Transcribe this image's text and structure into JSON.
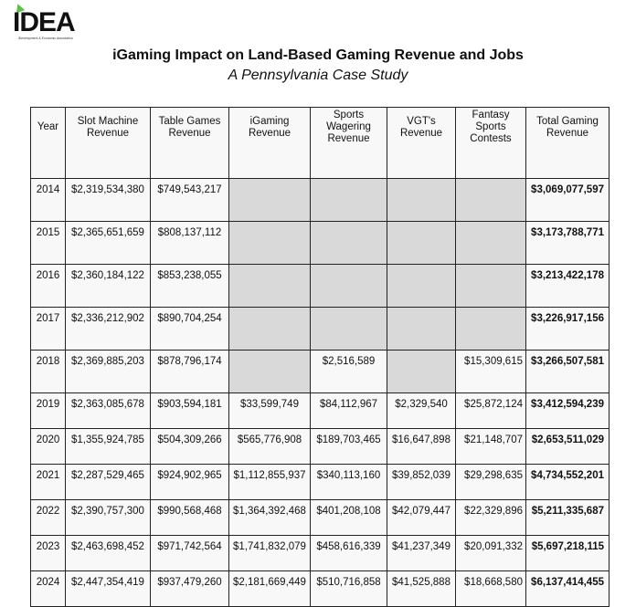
{
  "logo": {
    "text": "IDEA",
    "tagline": "iDevelopment & Economic Association",
    "accent_color": "#5dc24a"
  },
  "title": "iGaming Impact on Land-Based Gaming Revenue and Jobs",
  "subtitle": "A Pennsylvania Case Study",
  "table": {
    "headers": [
      [
        "Year"
      ],
      [
        "Slot Machine",
        "Revenue"
      ],
      [
        "Table Games",
        "Revenue"
      ],
      [
        "iGaming",
        "Revenue"
      ],
      [
        "Sports",
        "Wagering",
        "Revenue"
      ],
      [
        "VGT's",
        "Revenue"
      ],
      [
        "Fantasy",
        "Sports",
        "Contests"
      ],
      [
        "Total Gaming",
        "Revenue"
      ]
    ],
    "empty_cell_color": "#d9d9d9",
    "rows": [
      [
        "2014",
        "$2,319,534,380",
        "$749,543,217",
        "",
        "",
        "",
        "",
        "$3,069,077,597"
      ],
      [
        "2015",
        "$2,365,651,659",
        "$808,137,112",
        "",
        "",
        "",
        "",
        "$3,173,788,771"
      ],
      [
        "2016",
        "$2,360,184,122",
        "$853,238,055",
        "",
        "",
        "",
        "",
        "$3,213,422,178"
      ],
      [
        "2017",
        "$2,336,212,902",
        "$890,704,254",
        "",
        "",
        "",
        "",
        "$3,226,917,156"
      ],
      [
        "2018",
        "$2,369,885,203",
        "$878,796,174",
        "",
        "$2,516,589",
        "",
        "$15,309,615",
        "$3,266,507,581"
      ],
      [
        "2019",
        "$2,363,085,678",
        "$903,594,181",
        "$33,599,749",
        "$84,112,967",
        "$2,329,540",
        "$25,872,124",
        "$3,412,594,239"
      ],
      [
        "2020",
        "$1,355,924,785",
        "$504,309,266",
        "$565,776,908",
        "$189,703,465",
        "$16,647,898",
        "$21,148,707",
        "$2,653,511,029"
      ],
      [
        "2021",
        "$2,287,529,465",
        "$924,902,965",
        "$1,112,855,937",
        "$340,113,160",
        "$39,852,039",
        "$29,298,635",
        "$4,734,552,201"
      ],
      [
        "2022",
        "$2,390,757,300",
        "$990,568,468",
        "$1,364,392,468",
        "$401,208,108",
        "$42,079,447",
        "$22,329,896",
        "$5,211,335,687"
      ],
      [
        "2023",
        "$2,463,698,452",
        "$971,742,564",
        "$1,741,832,079",
        "$458,616,339",
        "$41,237,349",
        "$20,091,332",
        "$5,697,218,115"
      ],
      [
        "2024",
        "$2,447,354,419",
        "$937,479,260",
        "$2,181,669,449",
        "$510,716,858",
        "$41,525,888",
        "$18,668,580",
        "$6,137,414,455"
      ]
    ]
  }
}
